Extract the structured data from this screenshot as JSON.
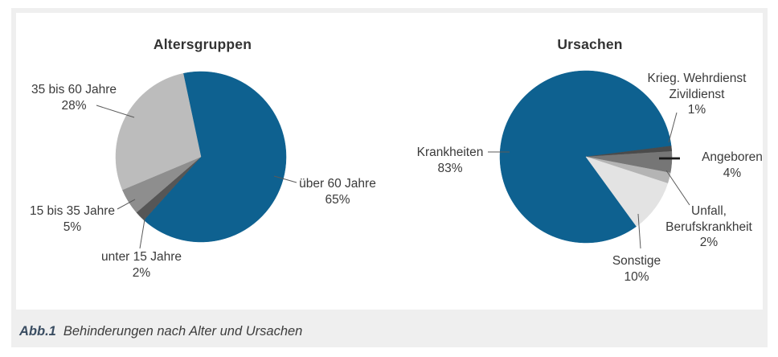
{
  "page": {
    "caption_prefix": "Abb.1",
    "caption_text": "Behinderungen nach Alter und Ursachen"
  },
  "colors": {
    "accent_blue": "#0e6190",
    "panel_bg": "#efefef",
    "card_bg": "#ffffff",
    "text": "#3a3a3a",
    "caption_prefix": "#3a4d62",
    "leader_line": "#5a5a5a",
    "angeboren_leader": "#1a1a1a"
  },
  "chart_data": [
    {
      "type": "pie",
      "title": "Altersgruppen",
      "direction": "clockwise",
      "start_angle_deg": -12,
      "legend_position": "none",
      "slices": [
        {
          "name": "über 60 Jahre",
          "lines": [
            "über 60 Jahre"
          ],
          "value": 65,
          "pct_label": "65%",
          "color": "#0e6190"
        },
        {
          "name": "unter 15 Jahre",
          "lines": [
            "unter 15 Jahre"
          ],
          "value": 2,
          "pct_label": "2%",
          "color": "#565656"
        },
        {
          "name": "15 bis 35 Jahre",
          "lines": [
            "15 bis 35 Jahre"
          ],
          "value": 5,
          "pct_label": "5%",
          "color": "#8e8e8e"
        },
        {
          "name": "35 bis 60 Jahre",
          "lines": [
            "35 bis 60 Jahre"
          ],
          "value": 28,
          "pct_label": "28%",
          "color": "#bcbcbc"
        }
      ]
    },
    {
      "type": "pie",
      "title": "Ursachen",
      "direction": "clockwise",
      "start_angle_deg": 144,
      "legend_position": "none",
      "slices": [
        {
          "name": "Krankheiten",
          "lines": [
            "Krankheiten"
          ],
          "value": 83,
          "pct_label": "83%",
          "color": "#0e6190"
        },
        {
          "name": "Krieg. Wehrdienst Zivildienst",
          "lines": [
            "Krieg. Wehrdienst",
            "Zivildienst"
          ],
          "value": 1,
          "pct_label": "1%",
          "color": "#4b4b4b"
        },
        {
          "name": "Angeboren",
          "lines": [
            "Angeboren"
          ],
          "value": 4,
          "pct_label": "4%",
          "color": "#767676"
        },
        {
          "name": "Unfall, Berufskrankheit",
          "lines": [
            "Unfall,",
            "Berufskrankheit"
          ],
          "value": 2,
          "pct_label": "2%",
          "color": "#b4b4b4"
        },
        {
          "name": "Sonstige",
          "lines": [
            "Sonstige"
          ],
          "value": 10,
          "pct_label": "10%",
          "color": "#e3e3e3"
        }
      ]
    }
  ]
}
